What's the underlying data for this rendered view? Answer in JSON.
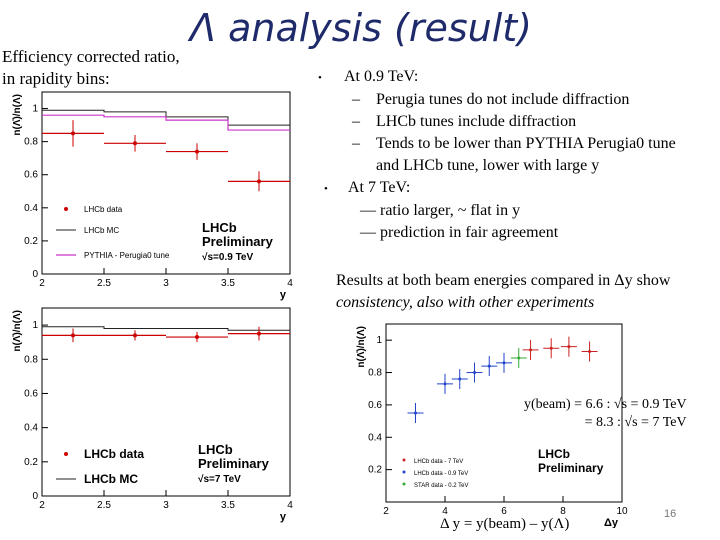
{
  "slide": {
    "title": "Λ analysis (result)",
    "subtitle_line1": "Efficiency corrected ratio,",
    "subtitle_line2": "in rapidity bins:",
    "bullets": {
      "b1": "At 0.9 TeV:",
      "b1_sub1": "Perugia tunes do not include diffraction",
      "b1_sub2": "LHCb tunes include diffraction",
      "b1_sub3": "Tends to be lower than PYTHIA Perugia0 tune",
      "b1_sub3_cont": "and LHCb tune, lower with large y",
      "b2": "At 7 TeV:",
      "b2_sub1": "ratio larger, ~ flat in y",
      "b2_sub2": "prediction in fair agreement",
      "dot": "•",
      "dash": "–",
      "emdash": "—"
    },
    "conclusion_line1": "Results at both beam energies compared in Δy show",
    "conclusion_line2": "consistency, also with other experiments",
    "beam_line1": "y(beam) = 6.6 : √s = 0.9 TeV",
    "beam_line2": "= 8.3 : √s = 7 TeV",
    "delta_y": "Δ y = y(beam) – y(Λ)",
    "page_number": "16"
  },
  "colors": {
    "title": "#1f2a6b",
    "lhcb_data": "#cc0000",
    "pythia": "#cc33cc",
    "mc": "#222222"
  },
  "chart_data": [
    {
      "type": "scatter",
      "title": "",
      "xlabel": "y",
      "ylabel": "n(Λ̄)/n(Λ)",
      "xlim": [
        2,
        4
      ],
      "ylim": [
        0,
        1.1
      ],
      "x_ticks": [
        "2",
        "2.5",
        "3",
        "3.5",
        "4"
      ],
      "y_ticks": [
        "0",
        "0.2",
        "0.4",
        "0.6",
        "0.8",
        "1"
      ],
      "legend": [
        "LHCb data",
        "LHCb MC",
        "PYTHIA - Perugia0 tune"
      ],
      "annotation_line1": "LHCb",
      "annotation_line2": "Preliminary",
      "annotation_line3": "√s=0.9 TeV",
      "series": [
        {
          "name": "LHCb data",
          "x": [
            2.25,
            2.75,
            3.25,
            3.75
          ],
          "y": [
            0.85,
            0.79,
            0.74,
            0.56
          ],
          "err": [
            0.08,
            0.05,
            0.05,
            0.06
          ]
        },
        {
          "name": "LHCb MC",
          "x": [
            2.0,
            2.5,
            3.0,
            3.5,
            4.0
          ],
          "y": [
            0.99,
            0.98,
            0.95,
            0.9,
            0.9
          ]
        },
        {
          "name": "PYTHIA - Perugia0 tune",
          "x": [
            2.0,
            2.5,
            3.0,
            3.5,
            4.0
          ],
          "y": [
            0.96,
            0.95,
            0.93,
            0.87,
            0.87
          ]
        }
      ]
    },
    {
      "type": "scatter",
      "title": "",
      "xlabel": "y",
      "ylabel": "n(Λ̄)/n(Λ)",
      "xlim": [
        2,
        4
      ],
      "ylim": [
        0,
        1.1
      ],
      "x_ticks": [
        "2",
        "2.5",
        "3",
        "3.5",
        "4"
      ],
      "y_ticks": [
        "0",
        "0.2",
        "0.4",
        "0.6",
        "0.8",
        "1"
      ],
      "legend": [
        "LHCb data",
        "LHCb MC"
      ],
      "annotation_line1": "LHCb",
      "annotation_line2": "Preliminary",
      "annotation_line3": "√s=7 TeV",
      "series": [
        {
          "name": "LHCb data",
          "x": [
            2.25,
            2.75,
            3.25,
            3.75
          ],
          "y": [
            0.94,
            0.94,
            0.93,
            0.95
          ],
          "err": [
            0.04,
            0.03,
            0.03,
            0.04
          ]
        },
        {
          "name": "LHCb MC",
          "x": [
            2.0,
            2.5,
            3.0,
            3.5,
            4.0
          ],
          "y": [
            0.99,
            0.98,
            0.98,
            0.97,
            0.97
          ]
        }
      ]
    },
    {
      "type": "scatter",
      "title": "",
      "xlabel": "Δy",
      "ylabel": "n(Λ̄)/n(Λ)",
      "xlim": [
        2,
        10
      ],
      "ylim": [
        0,
        1.1
      ],
      "x_ticks": [
        "2",
        "4",
        "6",
        "8",
        "10"
      ],
      "y_ticks": [
        "0.2",
        "0.4",
        "0.6",
        "0.8",
        "1"
      ],
      "legend": [
        "LHCb data - 7 TeV",
        "LHCb data - 0.9 TeV",
        "STAR data - 0.2 TeV"
      ],
      "annotation_line1": "LHCb",
      "annotation_line2": "Preliminary",
      "series": [
        {
          "name": "LHCb data - 7 TeV",
          "x": [
            6.9,
            7.6,
            8.2,
            8.9
          ],
          "y": [
            0.94,
            0.95,
            0.96,
            0.93
          ]
        },
        {
          "name": "LHCb data - 0.9 TeV",
          "x": [
            3.0,
            4.0,
            4.5,
            5.0,
            5.5,
            6.0
          ],
          "y": [
            0.55,
            0.73,
            0.76,
            0.8,
            0.84,
            0.86
          ]
        },
        {
          "name": "STAR data - 0.2 TeV",
          "x": [
            6.5
          ],
          "y": [
            0.89
          ]
        }
      ]
    }
  ]
}
